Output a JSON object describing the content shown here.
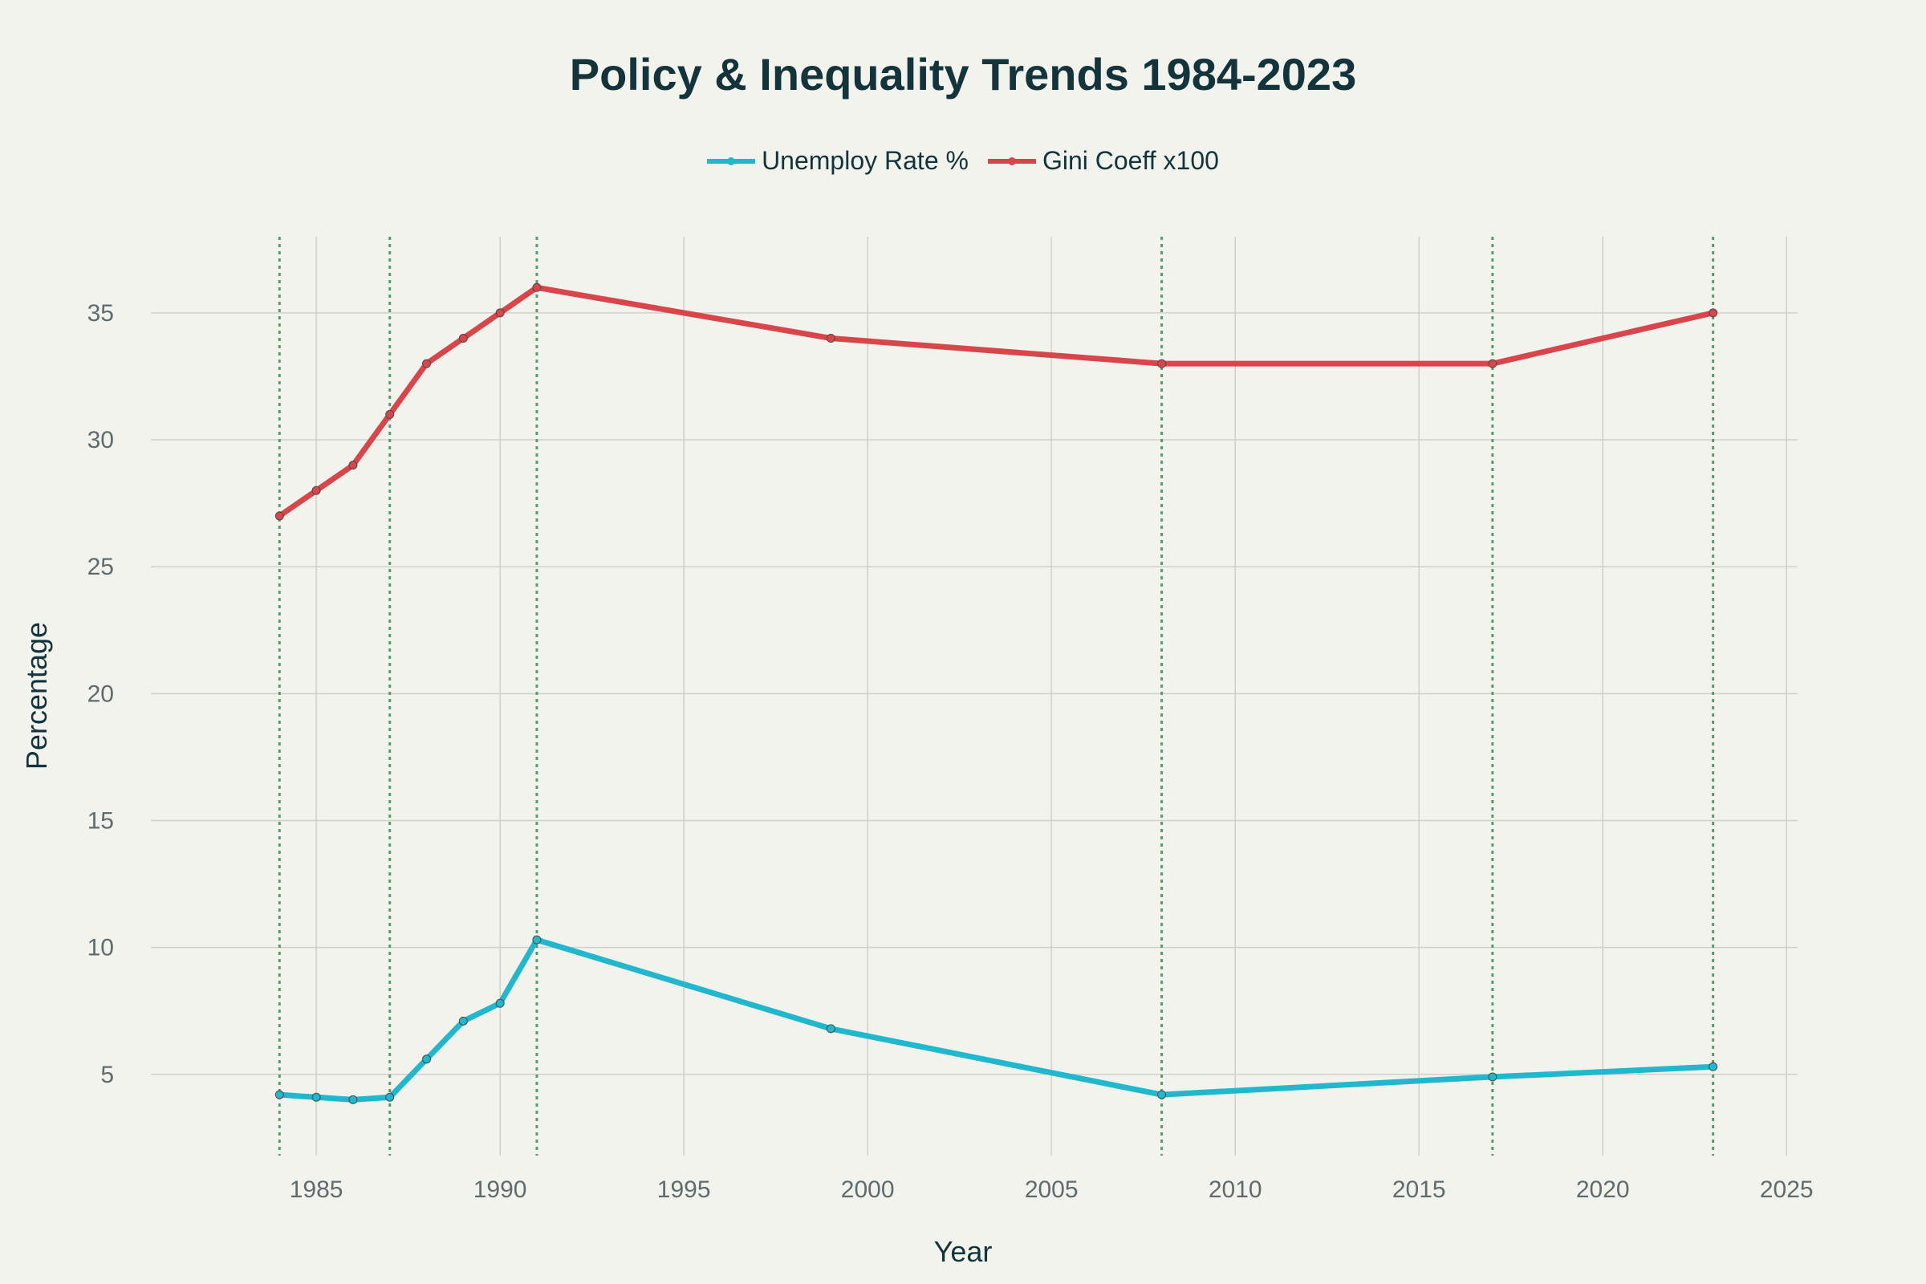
{
  "chart_data": {
    "type": "line",
    "title": "Policy & Inequality Trends 1984-2023",
    "xlabel": "Year",
    "ylabel": "Percentage",
    "xlim": [
      1980.5,
      2025.3
    ],
    "ylim": [
      1.8,
      38
    ],
    "x_ticks": [
      1985,
      1990,
      1995,
      2000,
      2005,
      2010,
      2015,
      2020,
      2025
    ],
    "y_ticks": [
      5,
      10,
      15,
      20,
      25,
      30,
      35
    ],
    "grid": true,
    "legend_position": "top-center",
    "vertical_reference_lines": [
      1984,
      1987,
      1991,
      2008,
      2017,
      2023
    ],
    "reference_line_color": "#5a9a6e",
    "series": [
      {
        "name": "Unemploy Rate %",
        "color": "#21b7cd",
        "x": [
          1984,
          1985,
          1986,
          1987,
          1988,
          1989,
          1990,
          1991,
          1999,
          2008,
          2017,
          2023
        ],
        "values": [
          4.2,
          4.1,
          4.0,
          4.1,
          5.6,
          7.1,
          7.8,
          10.3,
          6.8,
          4.2,
          4.9,
          5.3
        ]
      },
      {
        "name": "Gini Coeff x100",
        "color": "#d8464b",
        "x": [
          1984,
          1985,
          1986,
          1987,
          1988,
          1989,
          1990,
          1991,
          1999,
          2008,
          2017,
          2023
        ],
        "values": [
          27,
          28,
          29,
          31,
          33,
          34,
          35,
          36,
          34,
          33,
          33,
          35
        ]
      }
    ]
  }
}
